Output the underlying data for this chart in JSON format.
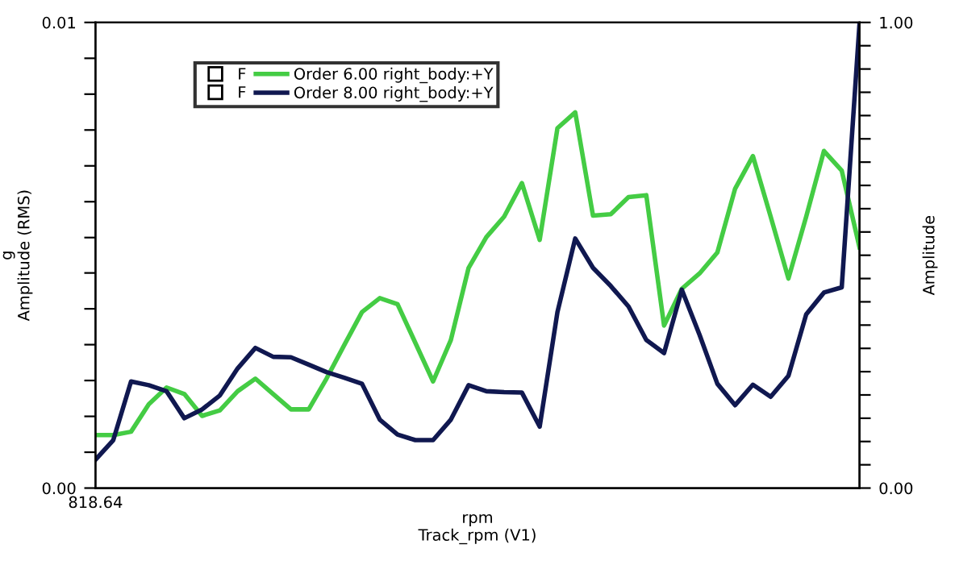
{
  "chart_data": {
    "type": "line",
    "xlabel": "rpm\nTrack_rpm (V1)",
    "ylabel": "g\nAmplitude (RMS)",
    "y2label": "Amplitude",
    "annotations": [
      "F",
      "F"
    ],
    "categories": [
      "818.64",
      null,
      null,
      null,
      null,
      null,
      null,
      null,
      null,
      null,
      null,
      null,
      null,
      null,
      null,
      null,
      null,
      null,
      null,
      null,
      null,
      null,
      null,
      null,
      null,
      null,
      null,
      null,
      null,
      null,
      null,
      null,
      null,
      null,
      null,
      null,
      null,
      null,
      null,
      null,
      null,
      null,
      null,
      null
    ],
    "ylim": [
      0,
      0.01
    ],
    "yticks": [
      {
        "value": 0,
        "label": "0.00"
      },
      {
        "value": 0.00077,
        "label": null
      },
      {
        "value": 0.00154,
        "label": null
      },
      {
        "value": 0.00231,
        "label": null
      },
      {
        "value": 0.00308,
        "label": null
      },
      {
        "value": 0.00385,
        "label": null
      },
      {
        "value": 0.00462,
        "label": null
      },
      {
        "value": 0.00538,
        "label": null
      },
      {
        "value": 0.00615,
        "label": null
      },
      {
        "value": 0.00692,
        "label": null
      },
      {
        "value": 0.00769,
        "label": null
      },
      {
        "value": 0.00846,
        "label": null
      },
      {
        "value": 0.00923,
        "label": null
      },
      {
        "value": 0.01,
        "label": "0.01"
      }
    ],
    "y2lim": [
      0,
      1
    ],
    "y2ticks": [
      {
        "value": 0,
        "label": "0.00"
      },
      {
        "value": 0.05,
        "label": null
      },
      {
        "value": 0.1,
        "label": null
      },
      {
        "value": 0.15,
        "label": null
      },
      {
        "value": 0.2,
        "label": null
      },
      {
        "value": 0.25,
        "label": null
      },
      {
        "value": 0.3,
        "label": null
      },
      {
        "value": 0.35,
        "label": null
      },
      {
        "value": 0.4,
        "label": null
      },
      {
        "value": 0.45,
        "label": null
      },
      {
        "value": 0.5,
        "label": null
      },
      {
        "value": 0.55,
        "label": null
      },
      {
        "value": 0.6,
        "label": null
      },
      {
        "value": 0.65,
        "label": null
      },
      {
        "value": 0.7,
        "label": null
      },
      {
        "value": 0.75,
        "label": null
      },
      {
        "value": 0.8,
        "label": null
      },
      {
        "value": 0.85,
        "label": null
      },
      {
        "value": 0.9,
        "label": null
      },
      {
        "value": 0.95,
        "label": null
      },
      {
        "value": 1,
        "label": "1.00"
      }
    ],
    "legend": "top left",
    "grid": false,
    "marker": "none",
    "line_style": "solid",
    "series": [
      {
        "name": "Order 6.00 right_body:+Y",
        "color": "#44cc44",
        "values": [
          0.00114,
          0.00114,
          0.00121,
          0.0018,
          0.00216,
          0.00202,
          0.00155,
          0.00167,
          0.00208,
          0.00235,
          0.00202,
          0.00169,
          0.00169,
          0.00235,
          0.00307,
          0.00378,
          0.00408,
          0.00395,
          0.00312,
          0.00229,
          0.00318,
          0.00473,
          0.00539,
          0.00583,
          0.00655,
          0.00533,
          0.00773,
          0.00807,
          0.00585,
          0.00588,
          0.00625,
          0.00629,
          0.00349,
          0.00428,
          0.00461,
          0.00506,
          0.00643,
          0.00713,
          0.00583,
          0.0045,
          0.00583,
          0.00724,
          0.00682,
          0.00517
        ]
      },
      {
        "name": "Order 8.00 right_body:+Y",
        "color": "#101850",
        "values": [
          0.00061,
          0.00103,
          0.00229,
          0.00221,
          0.00208,
          0.0015,
          0.00169,
          0.00199,
          0.00257,
          0.00301,
          0.00282,
          0.00281,
          0.00265,
          0.00249,
          0.00237,
          0.00224,
          0.00147,
          0.00115,
          0.00103,
          0.00103,
          0.00147,
          0.00221,
          0.00208,
          0.00206,
          0.00205,
          0.00132,
          0.00378,
          0.00536,
          0.00473,
          0.00434,
          0.0039,
          0.00318,
          0.0029,
          0.00426,
          0.00329,
          0.00224,
          0.00178,
          0.00222,
          0.00196,
          0.00241,
          0.00373,
          0.0042,
          0.00431,
          0.00997
        ]
      }
    ]
  }
}
